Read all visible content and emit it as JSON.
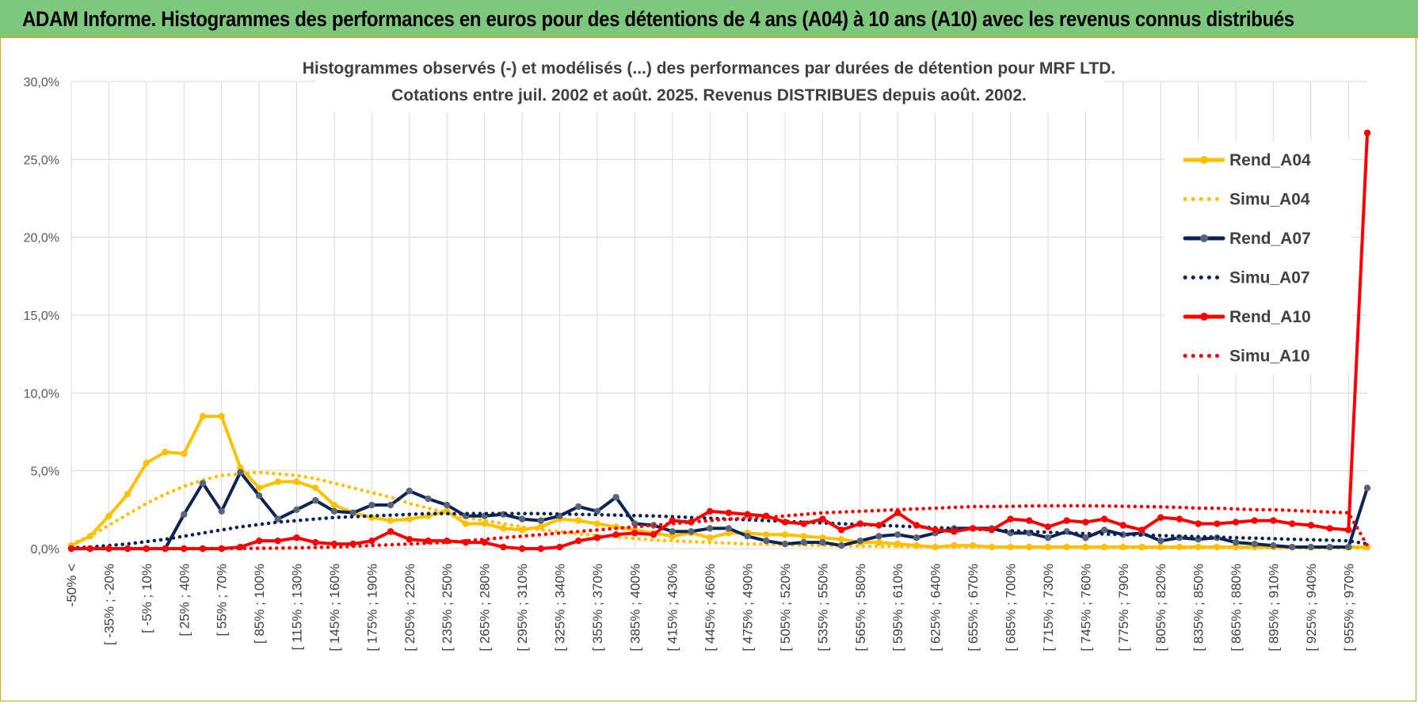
{
  "banner": {
    "title": "ADAM Informe. Histogrammes des performances en euros pour des détentions de 4 ans (A04) à 10 ans (A10) avec les revenus connus distribués"
  },
  "chart_data": {
    "type": "line",
    "title_line1": "Histogrammes observés (-) et modélisés (...) des performances par durées de détention pour MRF LTD.",
    "title_line2": "Cotations entre juil. 2002 et août. 2025. Revenus DISTRIBUES depuis août. 2002.",
    "ylim": [
      0,
      30
    ],
    "y_ticks": [
      "0,0%",
      "5,0%",
      "10,0%",
      "15,0%",
      "20,0%",
      "25,0%",
      "30,0%"
    ],
    "y_tick_values": [
      0,
      5,
      10,
      15,
      20,
      25,
      30
    ],
    "grid": true,
    "legend_position": "right",
    "x_tick_labels": [
      "-50% <",
      "[ -35% ; -20%",
      "[ -5% ; 10%",
      "[ 25% ; 40%",
      "[ 55% ; 70%",
      "[ 85% ; 100%",
      "[ 115% ; 130%",
      "[ 145% ; 160%",
      "[ 175% ; 190%",
      "[ 205% ; 220%",
      "[ 235% ; 250%",
      "[ 265% ; 280%",
      "[ 295% ; 310%",
      "[ 325% ; 340%",
      "[ 355% ; 370%",
      "[ 385% ; 400%",
      "[ 415% ; 430%",
      "[ 445% ; 460%",
      "[ 475% ; 490%",
      "[ 505% ; 520%",
      "[ 535% ; 550%",
      "[ 565% ; 580%",
      "[ 595% ; 610%",
      "[ 625% ; 640%",
      "[ 655% ; 670%",
      "[ 685% ; 700%",
      "[ 715% ; 730%",
      "[ 745% ; 760%",
      "[ 775% ; 790%",
      "[ 805% ; 820%",
      "[ 835% ; 850%",
      "[ 865% ; 880%",
      "[ 895% ; 910%",
      "[ 925% ; 940%",
      "[ 955% ; 970%"
    ],
    "series": [
      {
        "name": "Rend_A04",
        "color": "#ffc000",
        "style": "solid",
        "values": [
          0.2,
          0.8,
          2.1,
          3.5,
          5.5,
          6.2,
          6.1,
          8.5,
          8.5,
          5.2,
          3.9,
          4.3,
          4.3,
          3.9,
          2.8,
          2.3,
          2.0,
          1.8,
          1.9,
          2.1,
          2.4,
          1.6,
          1.6,
          1.3,
          1.2,
          1.4,
          1.9,
          1.8,
          1.6,
          1.4,
          1.2,
          1.0,
          0.8,
          1.0,
          0.7,
          1.0,
          1.0,
          0.9,
          0.9,
          0.8,
          0.7,
          0.6,
          0.4,
          0.4,
          0.3,
          0.2,
          0.1,
          0.2,
          0.2,
          0.1,
          0.1,
          0.1,
          0.1,
          0.1,
          0.1,
          0.1,
          0.1,
          0.1,
          0.1,
          0.1,
          0.1,
          0.1,
          0.1,
          0.1,
          0.1,
          0.1,
          0.1,
          0.1,
          0.1,
          0.1
        ]
      },
      {
        "name": "Simu_A04",
        "color": "#ffc000",
        "style": "dotted",
        "values": [
          0.3,
          0.8,
          1.5,
          2.2,
          2.9,
          3.5,
          4.0,
          4.4,
          4.7,
          4.8,
          4.9,
          4.8,
          4.7,
          4.5,
          4.2,
          3.9,
          3.6,
          3.3,
          2.9,
          2.6,
          2.3,
          2.0,
          1.8,
          1.6,
          1.4,
          1.2,
          1.1,
          0.95,
          0.85,
          0.75,
          0.65,
          0.55,
          0.5,
          0.45,
          0.4,
          0.35,
          0.3,
          0.28,
          0.25,
          0.22,
          0.2,
          0.18,
          0.16,
          0.15,
          0.14,
          0.13,
          0.12,
          0.11,
          0.1,
          0.1,
          0.09,
          0.09,
          0.08,
          0.08,
          0.07,
          0.07,
          0.06,
          0.06,
          0.05,
          0.05,
          0.05,
          0.05,
          0.04,
          0.04,
          0.04,
          0.04,
          0.03,
          0.03,
          0.03,
          0.03
        ]
      },
      {
        "name": "Rend_A07",
        "color": "#0b2357",
        "style": "solid",
        "values": [
          0.0,
          0.0,
          0.0,
          0.0,
          0.0,
          0.0,
          2.2,
          4.2,
          2.4,
          4.9,
          3.4,
          1.9,
          2.5,
          3.1,
          2.4,
          2.3,
          2.8,
          2.8,
          3.7,
          3.2,
          2.8,
          2.1,
          2.1,
          2.2,
          1.9,
          1.8,
          2.1,
          2.7,
          2.4,
          3.3,
          1.6,
          1.5,
          1.1,
          1.1,
          1.3,
          1.3,
          0.8,
          0.5,
          0.3,
          0.4,
          0.4,
          0.2,
          0.5,
          0.8,
          0.9,
          0.7,
          1.0,
          1.3,
          1.3,
          1.3,
          1.0,
          1.0,
          0.7,
          1.1,
          0.7,
          1.2,
          0.9,
          1.0,
          0.5,
          0.7,
          0.6,
          0.7,
          0.4,
          0.3,
          0.2,
          0.1,
          0.1,
          0.1,
          0.1,
          3.9
        ]
      },
      {
        "name": "Simu_A07",
        "color": "#0b2357",
        "style": "dotted",
        "values": [
          0.05,
          0.1,
          0.2,
          0.3,
          0.45,
          0.6,
          0.8,
          1.0,
          1.2,
          1.4,
          1.55,
          1.7,
          1.8,
          1.9,
          2.0,
          2.05,
          2.1,
          2.15,
          2.2,
          2.25,
          2.25,
          2.25,
          2.25,
          2.25,
          2.25,
          2.25,
          2.22,
          2.2,
          2.18,
          2.15,
          2.12,
          2.1,
          2.05,
          2.0,
          1.95,
          1.9,
          1.85,
          1.8,
          1.75,
          1.7,
          1.65,
          1.6,
          1.55,
          1.5,
          1.45,
          1.4,
          1.35,
          1.3,
          1.25,
          1.2,
          1.15,
          1.1,
          1.05,
          1.0,
          0.97,
          0.94,
          0.9,
          0.87,
          0.84,
          0.8,
          0.77,
          0.74,
          0.7,
          0.67,
          0.64,
          0.6,
          0.57,
          0.54,
          0.5,
          0.3
        ]
      },
      {
        "name": "Rend_A10",
        "color": "#ff0000",
        "style": "solid",
        "values": [
          0.0,
          0.0,
          0.0,
          0.0,
          0.0,
          0.0,
          0.0,
          0.0,
          0.0,
          0.1,
          0.5,
          0.5,
          0.7,
          0.4,
          0.3,
          0.3,
          0.5,
          1.1,
          0.6,
          0.5,
          0.5,
          0.4,
          0.4,
          0.1,
          0.0,
          0.0,
          0.1,
          0.5,
          0.7,
          0.9,
          1.0,
          0.9,
          1.8,
          1.7,
          2.4,
          2.3,
          2.2,
          2.1,
          1.7,
          1.6,
          1.9,
          1.2,
          1.6,
          1.5,
          2.3,
          1.5,
          1.2,
          1.1,
          1.3,
          1.2,
          1.9,
          1.8,
          1.4,
          1.8,
          1.7,
          1.9,
          1.5,
          1.2,
          2.0,
          1.9,
          1.6,
          1.6,
          1.7,
          1.8,
          1.8,
          1.6,
          1.5,
          1.3,
          1.2,
          26.7
        ]
      },
      {
        "name": "Simu_A10",
        "color": "#ff0000",
        "style": "dotted",
        "values": [
          0.0,
          0.0,
          0.0,
          0.0,
          0.0,
          0.0,
          0.0,
          0.0,
          0.01,
          0.01,
          0.02,
          0.03,
          0.05,
          0.08,
          0.1,
          0.15,
          0.2,
          0.25,
          0.3,
          0.35,
          0.4,
          0.5,
          0.6,
          0.7,
          0.8,
          0.9,
          1.0,
          1.1,
          1.2,
          1.3,
          1.4,
          1.5,
          1.6,
          1.7,
          1.8,
          1.9,
          1.95,
          2.0,
          2.1,
          2.2,
          2.3,
          2.35,
          2.4,
          2.45,
          2.5,
          2.55,
          2.6,
          2.65,
          2.7,
          2.7,
          2.72,
          2.74,
          2.75,
          2.75,
          2.75,
          2.74,
          2.72,
          2.7,
          2.68,
          2.65,
          2.6,
          2.6,
          2.55,
          2.5,
          2.5,
          2.45,
          2.4,
          2.35,
          2.3,
          0.2
        ]
      }
    ]
  }
}
